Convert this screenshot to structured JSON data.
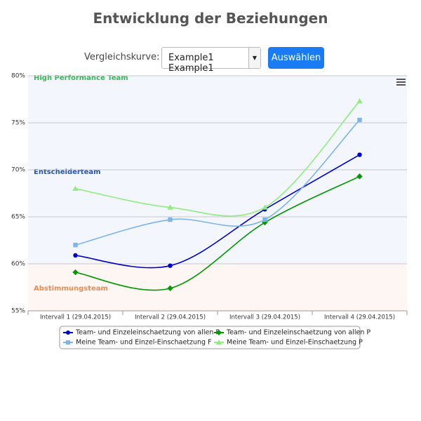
{
  "header": {
    "title": "Entwicklung der Beziehungen"
  },
  "controls": {
    "label": "Vergleichskurve:",
    "select": "Example1 Example1",
    "button": "Auswählen"
  },
  "chart_data": {
    "type": "line",
    "categories": [
      "Intervall 1 (29.04.2015)",
      "Intervall 2 (29.04.2015)",
      "Intervall 3 (29.04.2015)",
      "Intervall 4 (29.04.2015)"
    ],
    "ylim": [
      55,
      80
    ],
    "yticks": [
      {
        "value": 55,
        "label": "55%"
      },
      {
        "value": 60,
        "label": "60%"
      },
      {
        "value": 65,
        "label": "65%"
      },
      {
        "value": 70,
        "label": "70%"
      },
      {
        "value": 75,
        "label": "75%"
      },
      {
        "value": 80,
        "label": "80%"
      }
    ],
    "grid": true,
    "smooth": true,
    "plot_bands": [
      {
        "from": 70,
        "to": 80,
        "label": "High Performance Team",
        "color": "#f3f6fd",
        "label_color": "#33bb55"
      },
      {
        "from": 60,
        "to": 70,
        "label": "Entscheiderteam",
        "color": "#f3f6fd",
        "label_color": "#2255bb"
      },
      {
        "from": 55,
        "to": 60,
        "label": "Abstimmungsteam",
        "color": "#fdf6f3",
        "label_color": "#f08a4b"
      }
    ],
    "legend": "bottom",
    "series": [
      {
        "name": "Team- und Einzeleinschaetzung von allen F",
        "color": "#0000cc",
        "symbol": "circle",
        "values": [
          60.9,
          59.8,
          65.8,
          71.6
        ]
      },
      {
        "name": "Team- und Einzeleinschaetzung von allen P",
        "color": "#009900",
        "symbol": "diamond",
        "values": [
          59.1,
          57.4,
          64.4,
          69.3
        ]
      },
      {
        "name": "Meine Team- und Einzel-Einschaetzung F",
        "color": "#7cb5ec",
        "symbol": "square",
        "values": [
          62.0,
          64.7,
          64.7,
          75.3
        ]
      },
      {
        "name": "Meine Team- und Einzel-Einschaetzung P",
        "color": "#90ed7d",
        "symbol": "triangle",
        "values": [
          68.0,
          66.0,
          66.0,
          77.3
        ]
      }
    ]
  }
}
